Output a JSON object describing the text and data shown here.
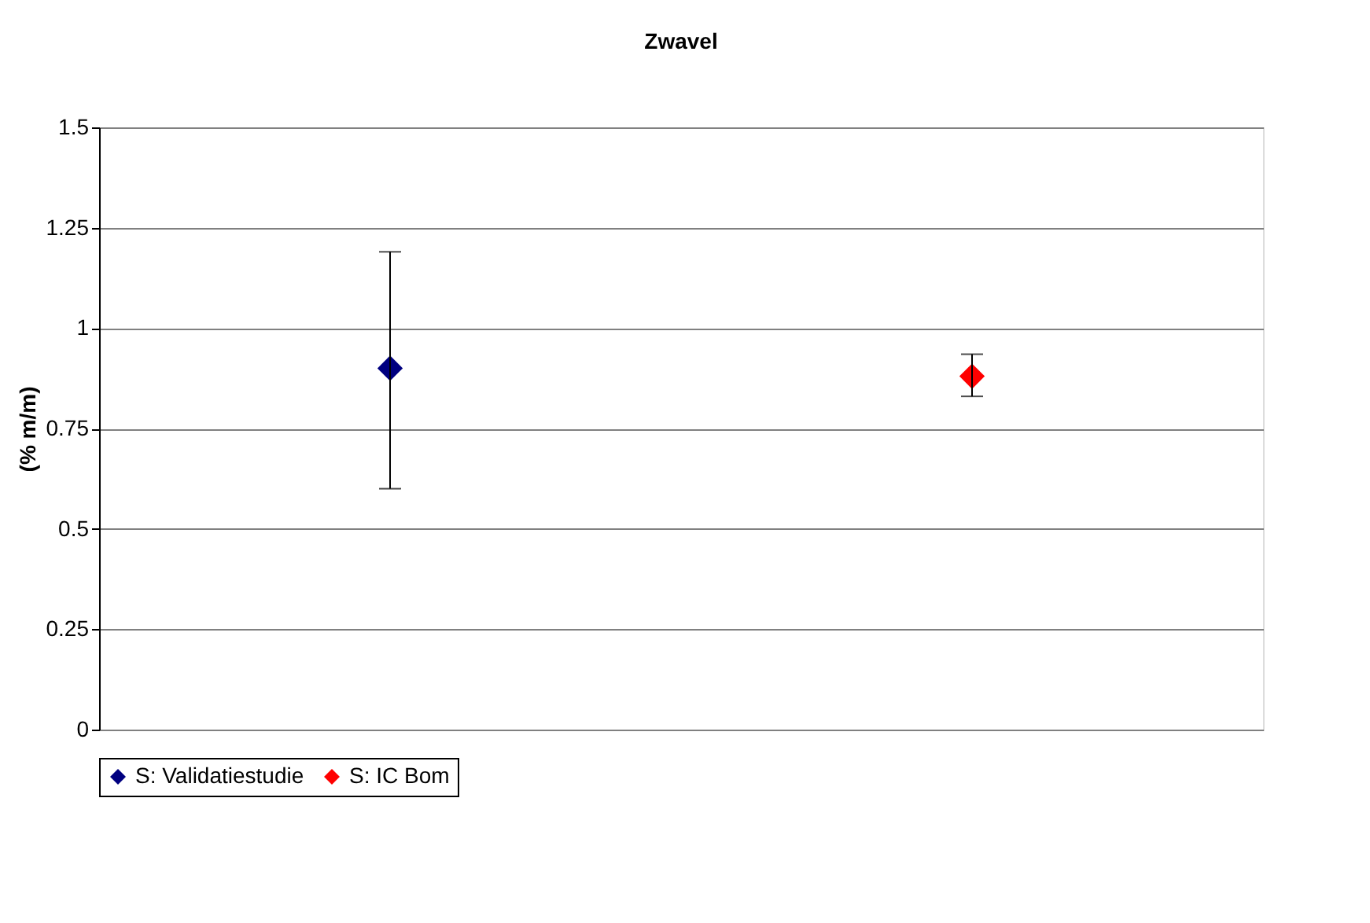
{
  "chart_data": {
    "type": "scatter",
    "title": "Zwavel",
    "ylabel": "(% m/m)",
    "categories": [
      null,
      null
    ],
    "series": [
      {
        "name": "S: Validatiestudie",
        "color": "#000080",
        "values": [
          0.9,
          null
        ],
        "errors": [
          [
            0.6,
            1.19
          ],
          null
        ]
      },
      {
        "name": "S: IC Bom",
        "color": "#ff0000",
        "values": [
          null,
          0.88
        ],
        "errors": [
          null,
          [
            0.83,
            0.935
          ]
        ]
      }
    ],
    "ylim": [
      0,
      1.5
    ],
    "yticks": [
      0,
      0.25,
      0.5,
      0.75,
      1,
      1.25,
      1.5
    ],
    "grid": "y",
    "legend": "bottom",
    "marker": "diamond"
  }
}
